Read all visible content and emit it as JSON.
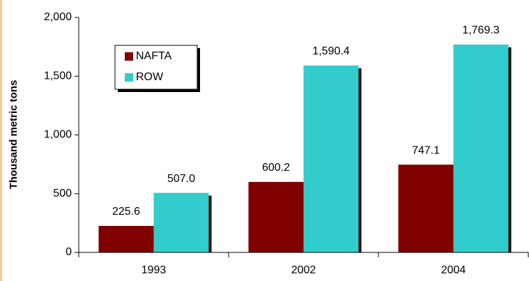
{
  "chart_data": {
    "type": "bar",
    "y_label": "Thousand metric tons",
    "categories": [
      "1993",
      "2002",
      "2004"
    ],
    "series": [
      {
        "name": "NAFTA",
        "color": "#800000",
        "values": [
          225.6,
          600.2,
          747.1
        ],
        "value_labels": [
          "225.6",
          "600.2",
          "747.1"
        ]
      },
      {
        "name": "ROW",
        "color": "#33cccc",
        "values": [
          507.0,
          1590.4,
          1769.3
        ],
        "value_labels": [
          "507.0",
          "1,590.4",
          "1,769.3"
        ]
      }
    ],
    "ylim": [
      0,
      2000
    ],
    "yticks": [
      0,
      500,
      {
        "value": 1000,
        "label": "1,000"
      },
      {
        "value": 1500,
        "label": "1,500"
      },
      {
        "value": 2000,
        "label": "2,000"
      }
    ],
    "legend": "upper left",
    "grid": false
  }
}
